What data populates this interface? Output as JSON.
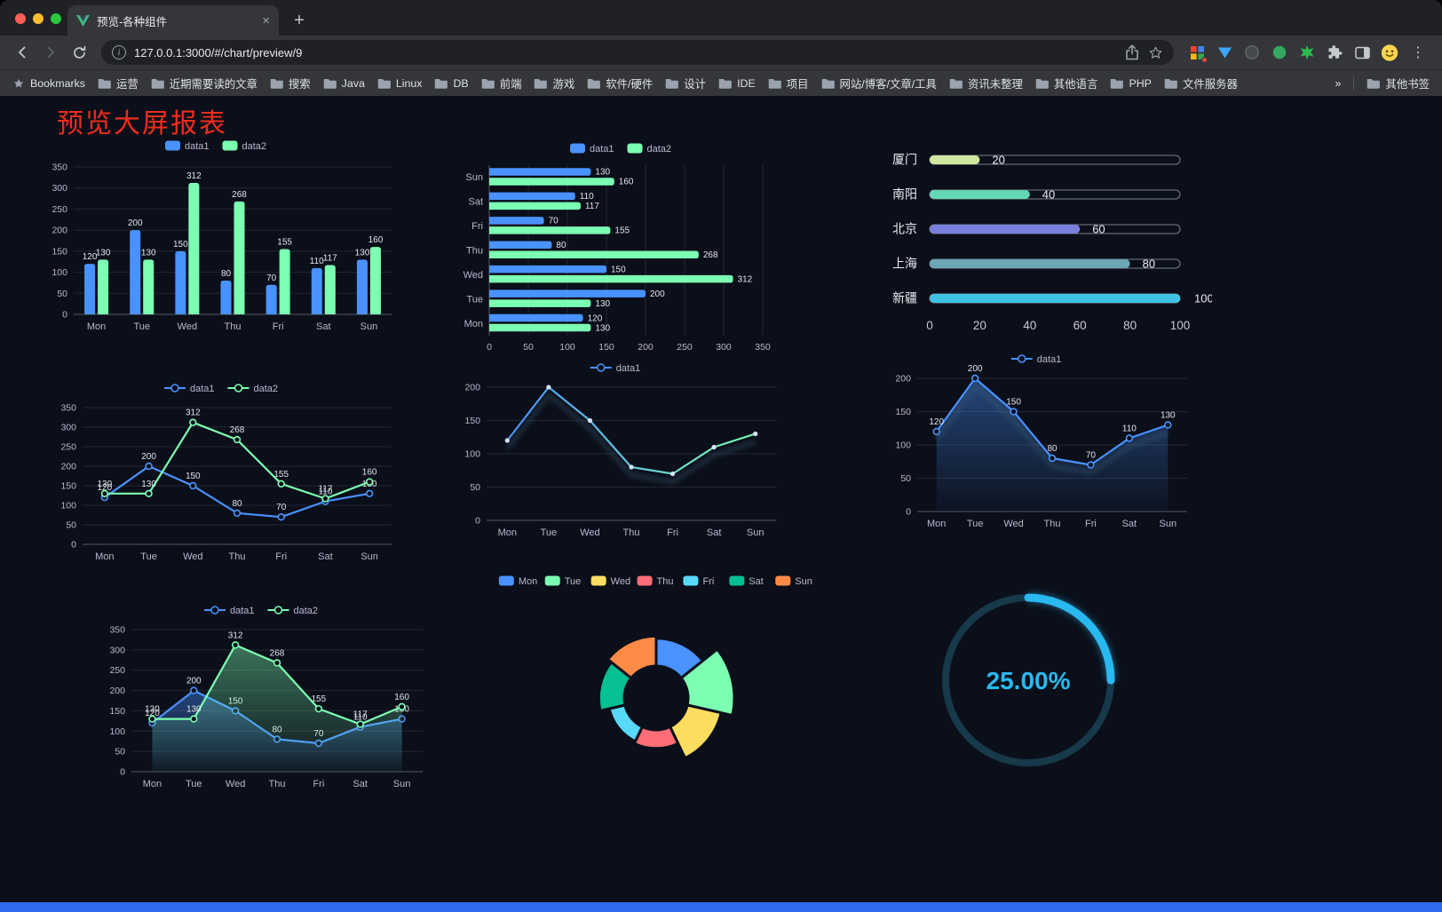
{
  "browser": {
    "tab_title": "预览-各种组件",
    "tab_close_glyph": "×",
    "new_tab_glyph": "+",
    "menu_glyph": "⋮",
    "url": "127.0.0.1:3000/#/chart/preview/9",
    "bookmarks_bar": {
      "primary_label": "Bookmarks",
      "folders": [
        "运营",
        "近期需要读的文章",
        "搜索",
        "Java",
        "Linux",
        "DB",
        "前端",
        "游戏",
        "软件/硬件",
        "设计",
        "IDE",
        "项目",
        "网站/博客/文章/工具",
        "资讯未整理",
        "其他语言",
        "PHP",
        "文件服务器"
      ],
      "overflow_chevron": "»",
      "other_bookmarks": "其他书签"
    }
  },
  "page": {
    "title": "预览大屏报表",
    "title_color": "#ee2d1c",
    "background": "#0b0f1a",
    "footer_color": "#2e6bf1"
  },
  "chart_data": [
    {
      "type": "bar",
      "render": "bar",
      "legend_position": "top",
      "grid": true,
      "categories": [
        "Mon",
        "Tue",
        "Wed",
        "Thu",
        "Fri",
        "Sat",
        "Sun"
      ],
      "series": [
        {
          "name": "data1",
          "color": "#4992ff",
          "values": [
            120,
            200,
            150,
            80,
            70,
            110,
            130
          ]
        },
        {
          "name": "data2",
          "color": "#7cffb2",
          "values": [
            130,
            130,
            312,
            268,
            155,
            117,
            160
          ]
        }
      ],
      "ylim": [
        0,
        350
      ],
      "ystep": 50,
      "value_labels": true
    },
    {
      "type": "bar",
      "render": "hbar",
      "legend_position": "top",
      "grid": true,
      "categories": [
        "Mon",
        "Tue",
        "Wed",
        "Thu",
        "Fri",
        "Sat",
        "Sun"
      ],
      "display_categories": [
        "Sun",
        "Sat",
        "Fri",
        "Thu",
        "Wed",
        "Tue",
        "Mon"
      ],
      "series": [
        {
          "name": "data1",
          "color": "#4992ff",
          "values": [
            120,
            200,
            150,
            80,
            70,
            110,
            130
          ]
        },
        {
          "name": "data2",
          "color": "#7cffb2",
          "values": [
            130,
            130,
            312,
            268,
            155,
            117,
            160
          ]
        }
      ],
      "xlim": [
        0,
        350
      ],
      "xstep": 50,
      "value_labels": true
    },
    {
      "type": "bar",
      "render": "progress",
      "items": [
        {
          "label": "厦门",
          "value": 20,
          "color": "#cfe79f"
        },
        {
          "label": "南阳",
          "value": 40,
          "color": "#63d7b4"
        },
        {
          "label": "北京",
          "value": 60,
          "color": "#7a80dd"
        },
        {
          "label": "上海",
          "value": 80,
          "color": "#6ba7b7"
        },
        {
          "label": "新疆",
          "value": 100,
          "color": "#3fc3e2"
        }
      ],
      "xlim": [
        0,
        100
      ],
      "xstep": 20
    },
    {
      "type": "line",
      "render": "line",
      "legend_position": "top",
      "grid": true,
      "categories": [
        "Mon",
        "Tue",
        "Wed",
        "Thu",
        "Fri",
        "Sat",
        "Sun"
      ],
      "series": [
        {
          "name": "data1",
          "color": "#4992ff",
          "values": [
            120,
            200,
            150,
            80,
            70,
            110,
            130
          ]
        },
        {
          "name": "data2",
          "color": "#7cffb2",
          "values": [
            130,
            130,
            312,
            268,
            155,
            117,
            160
          ]
        }
      ],
      "ylim": [
        0,
        350
      ],
      "ystep": 50,
      "value_labels": true
    },
    {
      "type": "line",
      "render": "line",
      "legend_position": "top",
      "grid": true,
      "shadow": true,
      "categories": [
        "Mon",
        "Tue",
        "Wed",
        "Thu",
        "Fri",
        "Sat",
        "Sun"
      ],
      "series": [
        {
          "name": "data1",
          "color": "#4992ff",
          "gradient": [
            "#4992ff",
            "#7cffb2"
          ],
          "values": [
            120,
            200,
            150,
            80,
            70,
            110,
            130
          ]
        }
      ],
      "ylim": [
        0,
        200
      ],
      "ystep": 50,
      "value_labels": false
    },
    {
      "type": "area",
      "render": "line",
      "legend_position": "top",
      "grid": true,
      "shadow": true,
      "categories": [
        "Mon",
        "Tue",
        "Wed",
        "Thu",
        "Fri",
        "Sat",
        "Sun"
      ],
      "series": [
        {
          "name": "data1",
          "color": "#4992ff",
          "area": true,
          "values": [
            120,
            200,
            150,
            80,
            70,
            110,
            130
          ]
        }
      ],
      "ylim": [
        0,
        200
      ],
      "ystep": 50,
      "value_labels": true
    },
    {
      "type": "area",
      "render": "line",
      "legend_position": "top",
      "grid": true,
      "categories": [
        "Mon",
        "Tue",
        "Wed",
        "Thu",
        "Fri",
        "Sat",
        "Sun"
      ],
      "series": [
        {
          "name": "data1",
          "color": "#4992ff",
          "area": true,
          "values": [
            120,
            200,
            150,
            80,
            70,
            110,
            130
          ]
        },
        {
          "name": "data2",
          "color": "#7cffb2",
          "area": true,
          "values": [
            130,
            130,
            312,
            268,
            155,
            117,
            160
          ]
        }
      ],
      "ylim": [
        0,
        350
      ],
      "ystep": 50,
      "value_labels": true
    },
    {
      "type": "pie",
      "render": "rose",
      "legend_position": "top",
      "categories": [
        "Mon",
        "Tue",
        "Wed",
        "Thu",
        "Fri",
        "Sat",
        "Sun"
      ],
      "values": [
        120,
        200,
        150,
        80,
        70,
        110,
        130
      ],
      "colors": [
        "#4992ff",
        "#7cffb2",
        "#fddd60",
        "#ff6e76",
        "#58d9f9",
        "#05c091",
        "#ff8a45"
      ]
    },
    {
      "type": "gauge",
      "render": "gauge",
      "value": 25,
      "value_label": "25.00%",
      "color": "#2ab8f0",
      "track_color": "#17394a"
    }
  ]
}
